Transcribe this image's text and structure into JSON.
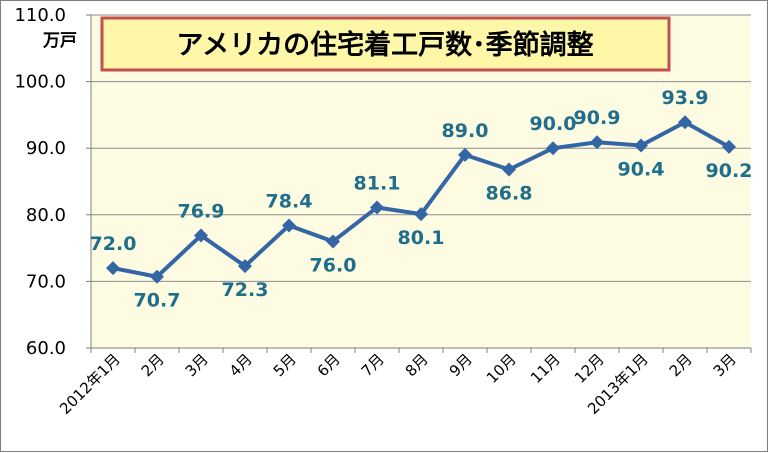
{
  "chart_data": {
    "type": "line",
    "title": "アメリカの住宅着工戸数･季節調整",
    "ylabel": "万戸",
    "xlabel": "",
    "categories": [
      "2012年1月",
      "2月",
      "3月",
      "4月",
      "5月",
      "6月",
      "7月",
      "8月",
      "9月",
      "10月",
      "11月",
      "12月",
      "2013年1月",
      "2月",
      "3月"
    ],
    "series": [
      {
        "values": [
          72.0,
          70.7,
          76.9,
          72.3,
          78.4,
          76.0,
          81.1,
          80.1,
          89.0,
          86.8,
          90.0,
          90.9,
          90.4,
          93.9,
          90.2
        ]
      }
    ],
    "data_labels": [
      "72.0",
      "70.7",
      "76.9",
      "72.3",
      "78.4",
      "76.0",
      "81.1",
      "80.1",
      "89.0",
      "86.8",
      "90.0",
      "90.9",
      "90.4",
      "93.9",
      "90.2"
    ],
    "yticks": [
      "60.0",
      "70.0",
      "80.0",
      "90.0",
      "100.0",
      "110.0"
    ],
    "ylim": [
      60,
      110
    ],
    "grid": true,
    "legend": "none",
    "colors": {
      "line": "#3465a4",
      "plot_background": "#fdfce2",
      "title_box": "#fef7a8",
      "title_border": "#c0504d",
      "data_label": "#1f6e8c"
    }
  }
}
